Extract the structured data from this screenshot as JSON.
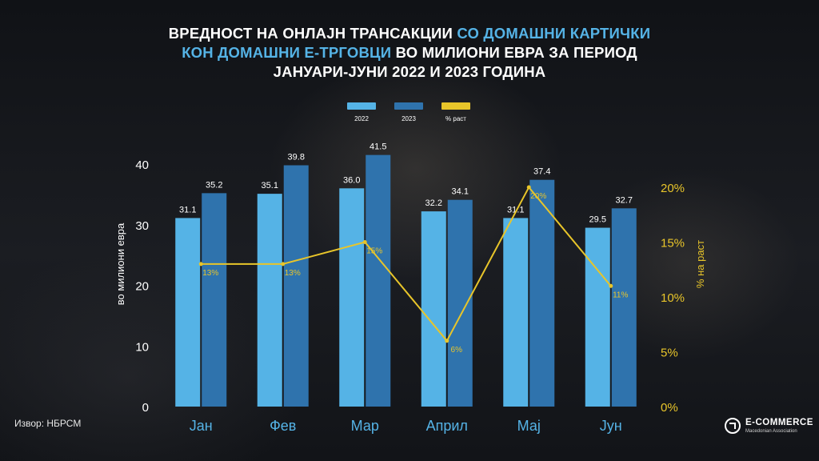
{
  "title": {
    "line1_part1": "ВРЕДНОСТ НА ОНЛАЈН ТРАНСАКЦИИ ",
    "line1_part2": "СО ДОМАШНИ КАРТИЧКИ",
    "line2_part1": "КОН ДОМАШНИ Е-ТРГОВЦИ",
    "line2_part2": " ВО МИЛИОНИ ЕВРА ЗА ПЕРИОД",
    "line3": "ЈАНУАРИ-ЈУНИ 2022 И 2023 ГОДИНА"
  },
  "source": "Извор: НБРСМ",
  "logo": {
    "name": "E-COMMERCE",
    "subtitle": "Macedonian Association"
  },
  "colors": {
    "bar2022": "#55b3e6",
    "bar2023": "#2f73ad",
    "growth": "#e8c52a",
    "text": "#ffffff"
  },
  "chart_data": {
    "type": "bar",
    "categories": [
      "Јан",
      "Фев",
      "Мар",
      "Април",
      "Мај",
      "Јун"
    ],
    "series": [
      {
        "name": "2022",
        "type": "bar",
        "values": [
          31.1,
          35.1,
          36.0,
          32.2,
          31.1,
          29.5
        ]
      },
      {
        "name": "2023",
        "type": "bar",
        "values": [
          35.2,
          39.8,
          41.5,
          34.1,
          37.4,
          32.7
        ]
      },
      {
        "name": "% раст",
        "type": "line",
        "axis": "right",
        "values": [
          13,
          13,
          15,
          6,
          20,
          11
        ]
      }
    ],
    "value_labels": {
      "bars2022": [
        "31.1",
        "35.1",
        "36.0",
        "32.2",
        "31.1",
        "29.5"
      ],
      "bars2023": [
        "35.2",
        "39.8",
        "41.5",
        "34.1",
        "37.4",
        "32.7"
      ],
      "growth": [
        "13%",
        "13%",
        "15%",
        "6%",
        "20%",
        "11%"
      ]
    },
    "ylabel": "во милиони евра",
    "y2label": "% на раст",
    "ylim": [
      0,
      40
    ],
    "y2lim": [
      0,
      20
    ],
    "yticks": [
      "0",
      "10",
      "20",
      "30",
      "40"
    ],
    "y2ticks": [
      "0%",
      "5%",
      "10%",
      "15%",
      "20%"
    ],
    "legend_position": "top-center",
    "grid": false
  }
}
